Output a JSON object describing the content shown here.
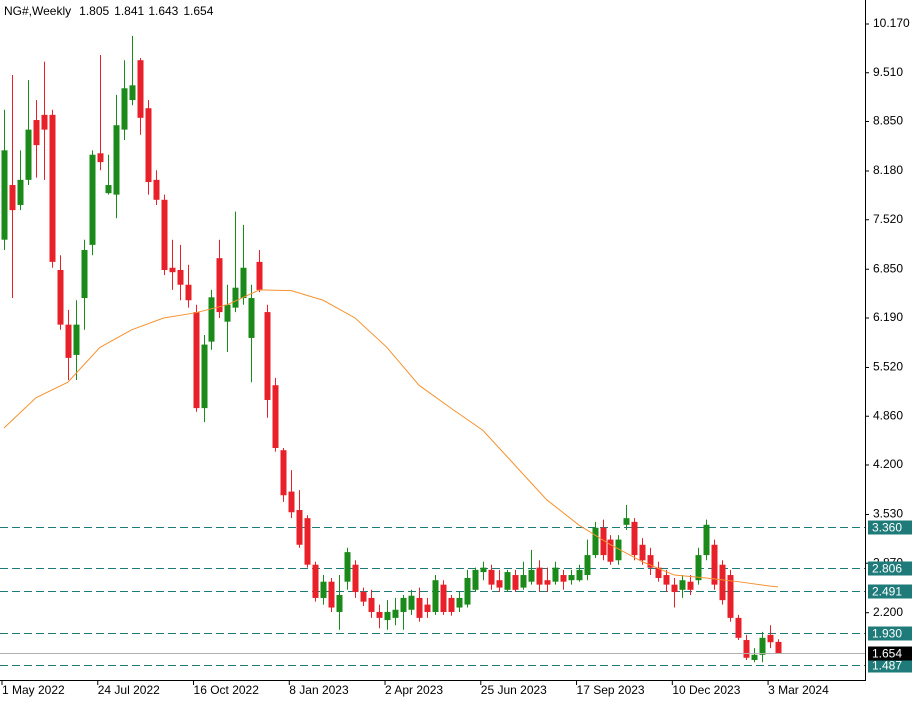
{
  "chart_data": {
    "type": "candlestick",
    "title": "NG#,Weekly",
    "categories": [
      "1 May 2022",
      null,
      null,
      null,
      null,
      null,
      null,
      null,
      null,
      null,
      null,
      null,
      "24 Jul 2022",
      null,
      null,
      null,
      null,
      null,
      null,
      null,
      null,
      null,
      null,
      null,
      "16 Oct 2022",
      null,
      null,
      null,
      null,
      null,
      null,
      null,
      null,
      null,
      null,
      null,
      "8 Jan 2023",
      null,
      null,
      null,
      null,
      null,
      null,
      null,
      null,
      null,
      null,
      null,
      "2 Apr 2023",
      null,
      null,
      null,
      null,
      null,
      null,
      null,
      null,
      null,
      null,
      null,
      "25 Jun 2023",
      null,
      null,
      null,
      null,
      null,
      null,
      null,
      null,
      null,
      null,
      null,
      "17 Sep 2023",
      null,
      null,
      null,
      null,
      null,
      null,
      null,
      null,
      null,
      null,
      null,
      "10 Dec 2023",
      null,
      null,
      null,
      null,
      null,
      null,
      null,
      null,
      null,
      null,
      null,
      "3 Mar 2024",
      null
    ],
    "open": [
      7.25,
      7.99,
      7.72,
      8.06,
      8.87,
      8.94,
      8.94,
      6.84,
      6.1,
      5.69,
      6.46,
      7.18,
      8.42,
      7.88,
      7.86,
      8.74,
      9.14,
      9.68,
      9.03,
      8.06,
      7.79,
      6.87,
      6.84,
      6.64,
      6.27,
      4.97,
      5.87,
      7.0,
      6.14,
      6.33,
      6.46,
      5.92,
      6.95,
      6.27,
      5.28,
      4.4,
      3.84,
      3.59,
      3.48,
      2.85,
      2.4,
      2.62,
      2.21,
      2.62,
      2.85,
      2.48,
      2.4,
      2.21,
      2.1,
      2.13,
      2.21,
      2.24,
      2.4,
      2.31,
      2.21,
      2.58,
      2.4,
      2.27,
      2.31,
      2.51,
      2.75,
      2.78,
      2.64,
      2.51,
      2.71,
      2.54,
      2.62,
      2.81,
      2.64,
      2.62,
      2.71,
      2.64,
      2.64,
      2.71,
      2.98,
      3.35,
      3.19,
      2.91,
      3.39,
      3.43,
      3.12,
      2.98,
      2.81,
      2.71,
      2.58,
      2.51,
      2.62,
      2.64,
      2.98,
      3.12,
      2.85,
      2.71,
      2.13,
      1.83,
      1.56,
      1.63,
      1.9,
      1.805
    ],
    "high": [
      9.01,
      9.48,
      8.46,
      9.41,
      9.14,
      9.66,
      9.01,
      7.04,
      6.3,
      6.43,
      7.25,
      8.46,
      9.75,
      8.4,
      9.21,
      9.68,
      10.01,
      9.71,
      9.14,
      8.19,
      7.86,
      7.25,
      7.18,
      6.91,
      6.37,
      5.96,
      6.57,
      7.25,
      6.64,
      7.63,
      7.45,
      6.64,
      7.11,
      6.37,
      5.38,
      4.43,
      4.13,
      3.86,
      3.52,
      2.89,
      2.71,
      2.67,
      2.71,
      3.08,
      2.91,
      2.54,
      2.51,
      2.31,
      2.37,
      2.4,
      2.44,
      2.51,
      2.54,
      2.4,
      2.71,
      2.64,
      2.44,
      2.48,
      2.78,
      2.81,
      2.89,
      2.85,
      2.78,
      2.78,
      2.78,
      2.89,
      3.05,
      2.91,
      2.81,
      2.89,
      2.78,
      2.78,
      2.85,
      3.19,
      3.43,
      3.46,
      3.25,
      3.25,
      3.66,
      3.48,
      3.21,
      3.08,
      2.89,
      2.78,
      2.67,
      2.71,
      2.71,
      3.08,
      3.46,
      3.19,
      2.91,
      2.78,
      2.17,
      1.9,
      1.72,
      1.94,
      2.03,
      1.841
    ],
    "low": [
      7.11,
      6.46,
      7.65,
      7.99,
      8.09,
      8.06,
      6.87,
      6.03,
      5.35,
      5.35,
      6.03,
      7.04,
      8.19,
      7.86,
      7.54,
      8.6,
      9.07,
      8.67,
      7.86,
      7.72,
      6.77,
      6.57,
      6.43,
      6.33,
      4.92,
      4.78,
      5.76,
      6.19,
      5.73,
      6.27,
      6.37,
      5.32,
      6.54,
      4.84,
      4.38,
      3.7,
      3.48,
      3.08,
      2.81,
      2.35,
      2.31,
      2.21,
      1.97,
      2.51,
      2.4,
      2.29,
      2.13,
      1.99,
      1.97,
      2.03,
      1.97,
      2.17,
      2.08,
      2.13,
      2.17,
      2.17,
      2.16,
      2.21,
      2.27,
      2.48,
      2.64,
      2.51,
      2.48,
      2.48,
      2.48,
      2.51,
      2.58,
      2.48,
      2.48,
      2.58,
      2.51,
      2.58,
      2.62,
      2.64,
      2.94,
      2.91,
      2.85,
      2.85,
      3.32,
      2.91,
      2.85,
      2.71,
      2.62,
      2.48,
      2.27,
      2.4,
      2.44,
      2.58,
      2.91,
      2.51,
      2.31,
      2.08,
      1.83,
      1.56,
      1.53,
      1.53,
      1.72,
      1.643
    ],
    "close": [
      8.46,
      7.65,
      8.06,
      8.74,
      8.53,
      8.74,
      6.95,
      6.1,
      5.65,
      6.1,
      7.11,
      8.4,
      8.3,
      7.99,
      8.8,
      9.3,
      9.34,
      8.9,
      8.03,
      7.79,
      6.84,
      6.81,
      6.64,
      6.43,
      4.97,
      5.83,
      6.47,
      6.27,
      6.37,
      6.6,
      6.87,
      6.46,
      6.57,
      5.08,
      4.43,
      3.79,
      3.56,
      3.12,
      2.85,
      2.4,
      2.62,
      2.27,
      2.44,
      3.02,
      2.48,
      2.35,
      2.21,
      2.13,
      2.21,
      2.24,
      2.4,
      2.43,
      2.13,
      2.21,
      2.64,
      2.21,
      2.21,
      2.4,
      2.67,
      2.78,
      2.81,
      2.58,
      2.54,
      2.75,
      2.51,
      2.71,
      2.78,
      2.58,
      2.58,
      2.81,
      2.62,
      2.71,
      2.78,
      2.98,
      3.35,
      2.98,
      2.89,
      3.19,
      3.48,
      2.98,
      2.91,
      2.81,
      2.67,
      2.58,
      2.48,
      2.64,
      2.51,
      2.98,
      3.39,
      2.58,
      2.37,
      2.13,
      1.86,
      1.59,
      1.63,
      1.86,
      1.8,
      1.654
    ],
    "up_color": "#1a8a1a",
    "down_color": "#e8202a",
    "ma": {
      "x": [
        0,
        4,
        8,
        12,
        16,
        20,
        24,
        28,
        32,
        36,
        40,
        44,
        48,
        52,
        56,
        60,
        64,
        68,
        72,
        76,
        80,
        84,
        88,
        92,
        96,
        97
      ],
      "values": [
        4.7,
        5.11,
        5.32,
        5.79,
        6.03,
        6.19,
        6.26,
        6.37,
        6.57,
        6.56,
        6.43,
        6.19,
        5.79,
        5.28,
        4.97,
        4.67,
        4.2,
        3.73,
        3.39,
        3.12,
        2.89,
        2.71,
        2.67,
        2.62,
        2.56,
        2.55
      ],
      "color": "#f5922f"
    },
    "levels": [
      {
        "value": 3.36,
        "label": "3.360"
      },
      2.806,
      2.491,
      {
        "value": 1.93,
        "label": "1.930"
      },
      1.487
    ],
    "level_color": "#1f7a7a",
    "ylim": [
      1.289,
      10.495
    ],
    "yticks": [
      {
        "value": 10.17,
        "label": "10.170"
      },
      {
        "value": 9.51,
        "label": "9.510"
      },
      {
        "value": 8.85,
        "label": "8.850"
      },
      {
        "value": 8.18,
        "label": "8.180"
      },
      {
        "value": 7.52,
        "label": "7.520"
      },
      {
        "value": 6.85,
        "label": "6.850"
      },
      {
        "value": 6.19,
        "label": "6.190"
      },
      {
        "value": 5.52,
        "label": "5.520"
      },
      {
        "value": 4.86,
        "label": "4.860"
      },
      {
        "value": 4.2,
        "label": "4.200"
      },
      {
        "value": 3.53,
        "label": "3.530"
      },
      {
        "value": 2.87,
        "label": "2.870"
      },
      {
        "value": 2.2,
        "label": "2.200"
      }
    ]
  }
}
